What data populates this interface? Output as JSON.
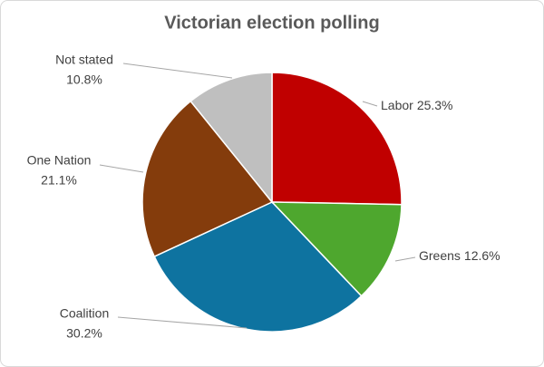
{
  "chart_data": {
    "type": "pie",
    "title": "Victorian election polling",
    "categories": [
      "Labor",
      "Greens",
      "Coalition",
      "One Nation",
      "Not stated"
    ],
    "values": [
      25.3,
      12.6,
      30.2,
      21.1,
      10.8
    ],
    "value_labels": [
      "25.3%",
      "12.6%",
      "30.2%",
      "21.1%",
      "10.8%"
    ],
    "colors": [
      "#c00000",
      "#4ea72e",
      "#0e73a0",
      "#843c0c",
      "#bfbfbf"
    ]
  }
}
